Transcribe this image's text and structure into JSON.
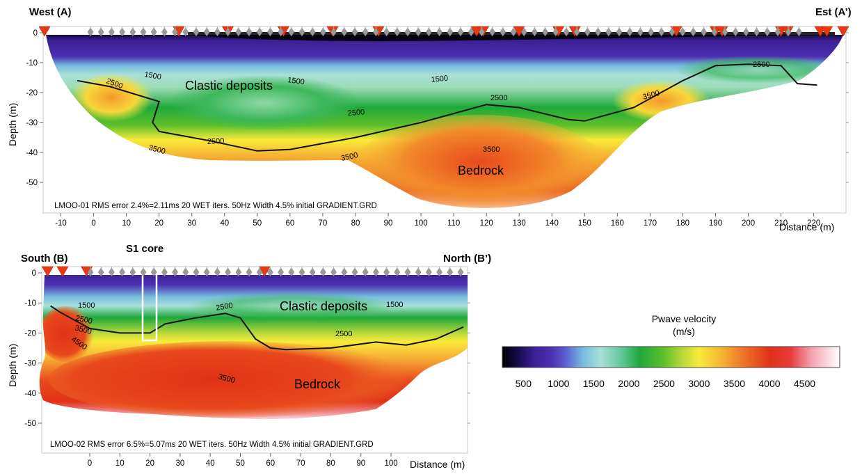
{
  "chart_data": [
    {
      "type": "heatmap",
      "title": "",
      "corner_left": "West (A)",
      "corner_right": "Est (A’)",
      "ylabel": "Depth (m)",
      "xlabel": "Distance (m)",
      "x_ticks": [
        "-10",
        "0",
        "10",
        "20",
        "30",
        "40",
        "50",
        "60",
        "70",
        "80",
        "90",
        "100",
        "110",
        "120",
        "130",
        "140",
        "150",
        "160",
        "170",
        "180",
        "190",
        "200",
        "210",
        "220"
      ],
      "y_ticks": [
        "0",
        "-10",
        "-20",
        "-30",
        "-40",
        "-50"
      ],
      "xlim": [
        -15,
        230
      ],
      "ylim": [
        -60,
        0
      ],
      "annotations": [
        "Clastic deposits",
        "Bedrock"
      ],
      "contour_labels": [
        "1500",
        "1500",
        "1500",
        "2500",
        "2500",
        "2500",
        "2500",
        "2500",
        "2500",
        "3500",
        "3500",
        "3500",
        "3500"
      ],
      "footer": "LMOO-01 RMS error 2.4%=2.11ms 20 WET iters. 50Hz Width 4.5% initial GRADIENT.GRD",
      "shots_x": [
        -15,
        26,
        41,
        58,
        73,
        87,
        117,
        119,
        130,
        142,
        147,
        178,
        190,
        192,
        210,
        212,
        222,
        224,
        229
      ],
      "interface_x": [
        -5,
        5,
        20,
        18,
        20,
        35,
        50,
        60,
        80,
        100,
        120,
        130,
        145,
        150,
        165,
        180,
        190,
        200,
        210,
        215,
        221
      ],
      "interface_y": [
        -16,
        -18,
        -23,
        -30,
        -33,
        -36,
        -39.5,
        -39,
        -35,
        -30,
        -24,
        -25,
        -29,
        -29.5,
        -25,
        -16,
        -11,
        -10.5,
        -11,
        -17,
        -17.5
      ]
    },
    {
      "type": "heatmap",
      "title": "",
      "corner_left": "South (B)",
      "corner_right": "North (B’)",
      "core_label": "S1 core",
      "ylabel": "Depth (m)",
      "xlabel": "Distance (m)",
      "x_ticks": [
        "0",
        "10",
        "20",
        "30",
        "40",
        "50",
        "60",
        "70",
        "80",
        "90",
        "100"
      ],
      "y_ticks": [
        "0",
        "-10",
        "-20",
        "-30",
        "-40",
        "-50"
      ],
      "xlim": [
        -15,
        125
      ],
      "ylim": [
        -55,
        0
      ],
      "annotations": [
        "Clastic deposits",
        "Bedrock"
      ],
      "contour_labels": [
        "1500",
        "1500",
        "2500",
        "2500",
        "2500",
        "3500",
        "3500",
        "4500"
      ],
      "footer": "LMOO-02 RMS error 6.5%=5.07ms 20 WET iters. 50Hz Width 4.5% initial GRADIENT.GRD",
      "shots_x": [
        -14,
        -9,
        -1,
        58
      ],
      "interface_x": [
        -13,
        -10,
        0,
        10,
        20,
        25,
        35,
        45,
        50,
        55,
        60,
        65,
        80,
        95,
        105,
        115,
        124
      ],
      "interface_y": [
        -11,
        -13,
        -18.5,
        -20,
        -20,
        -17,
        -15,
        -13.5,
        -15,
        -22,
        -25,
        -25.5,
        -25,
        -23,
        -24,
        -22,
        -18
      ]
    }
  ],
  "colorbar": {
    "title_line1": "Pwave velocity",
    "title_line2": "(m/s)",
    "ticks": [
      "500",
      "1000",
      "1500",
      "2000",
      "2500",
      "3000",
      "3500",
      "4000",
      "4500"
    ],
    "range": [
      200,
      5000
    ],
    "stops": [
      {
        "v": 200,
        "c": "#000000"
      },
      {
        "v": 400,
        "c": "#140a45"
      },
      {
        "v": 650,
        "c": "#3a1f95"
      },
      {
        "v": 900,
        "c": "#4b31b0"
      },
      {
        "v": 1100,
        "c": "#5a5fd0"
      },
      {
        "v": 1350,
        "c": "#78bde0"
      },
      {
        "v": 1600,
        "c": "#a8e0d8"
      },
      {
        "v": 1900,
        "c": "#5fc79a"
      },
      {
        "v": 2150,
        "c": "#1ea83a"
      },
      {
        "v": 2500,
        "c": "#5ec02a"
      },
      {
        "v": 2750,
        "c": "#b6d83a"
      },
      {
        "v": 3000,
        "c": "#f8ea3a"
      },
      {
        "v": 3300,
        "c": "#f6b834"
      },
      {
        "v": 3600,
        "c": "#ef7a2a"
      },
      {
        "v": 4000,
        "c": "#e03218"
      },
      {
        "v": 4300,
        "c": "#e63a3a"
      },
      {
        "v": 4600,
        "c": "#f5a3b0"
      },
      {
        "v": 5000,
        "c": "#ffffff"
      }
    ]
  },
  "colors": {
    "shot": "#e83a12",
    "geophone": "#9a9a9a",
    "interface": "#111111",
    "core_box": "#ffffff"
  }
}
